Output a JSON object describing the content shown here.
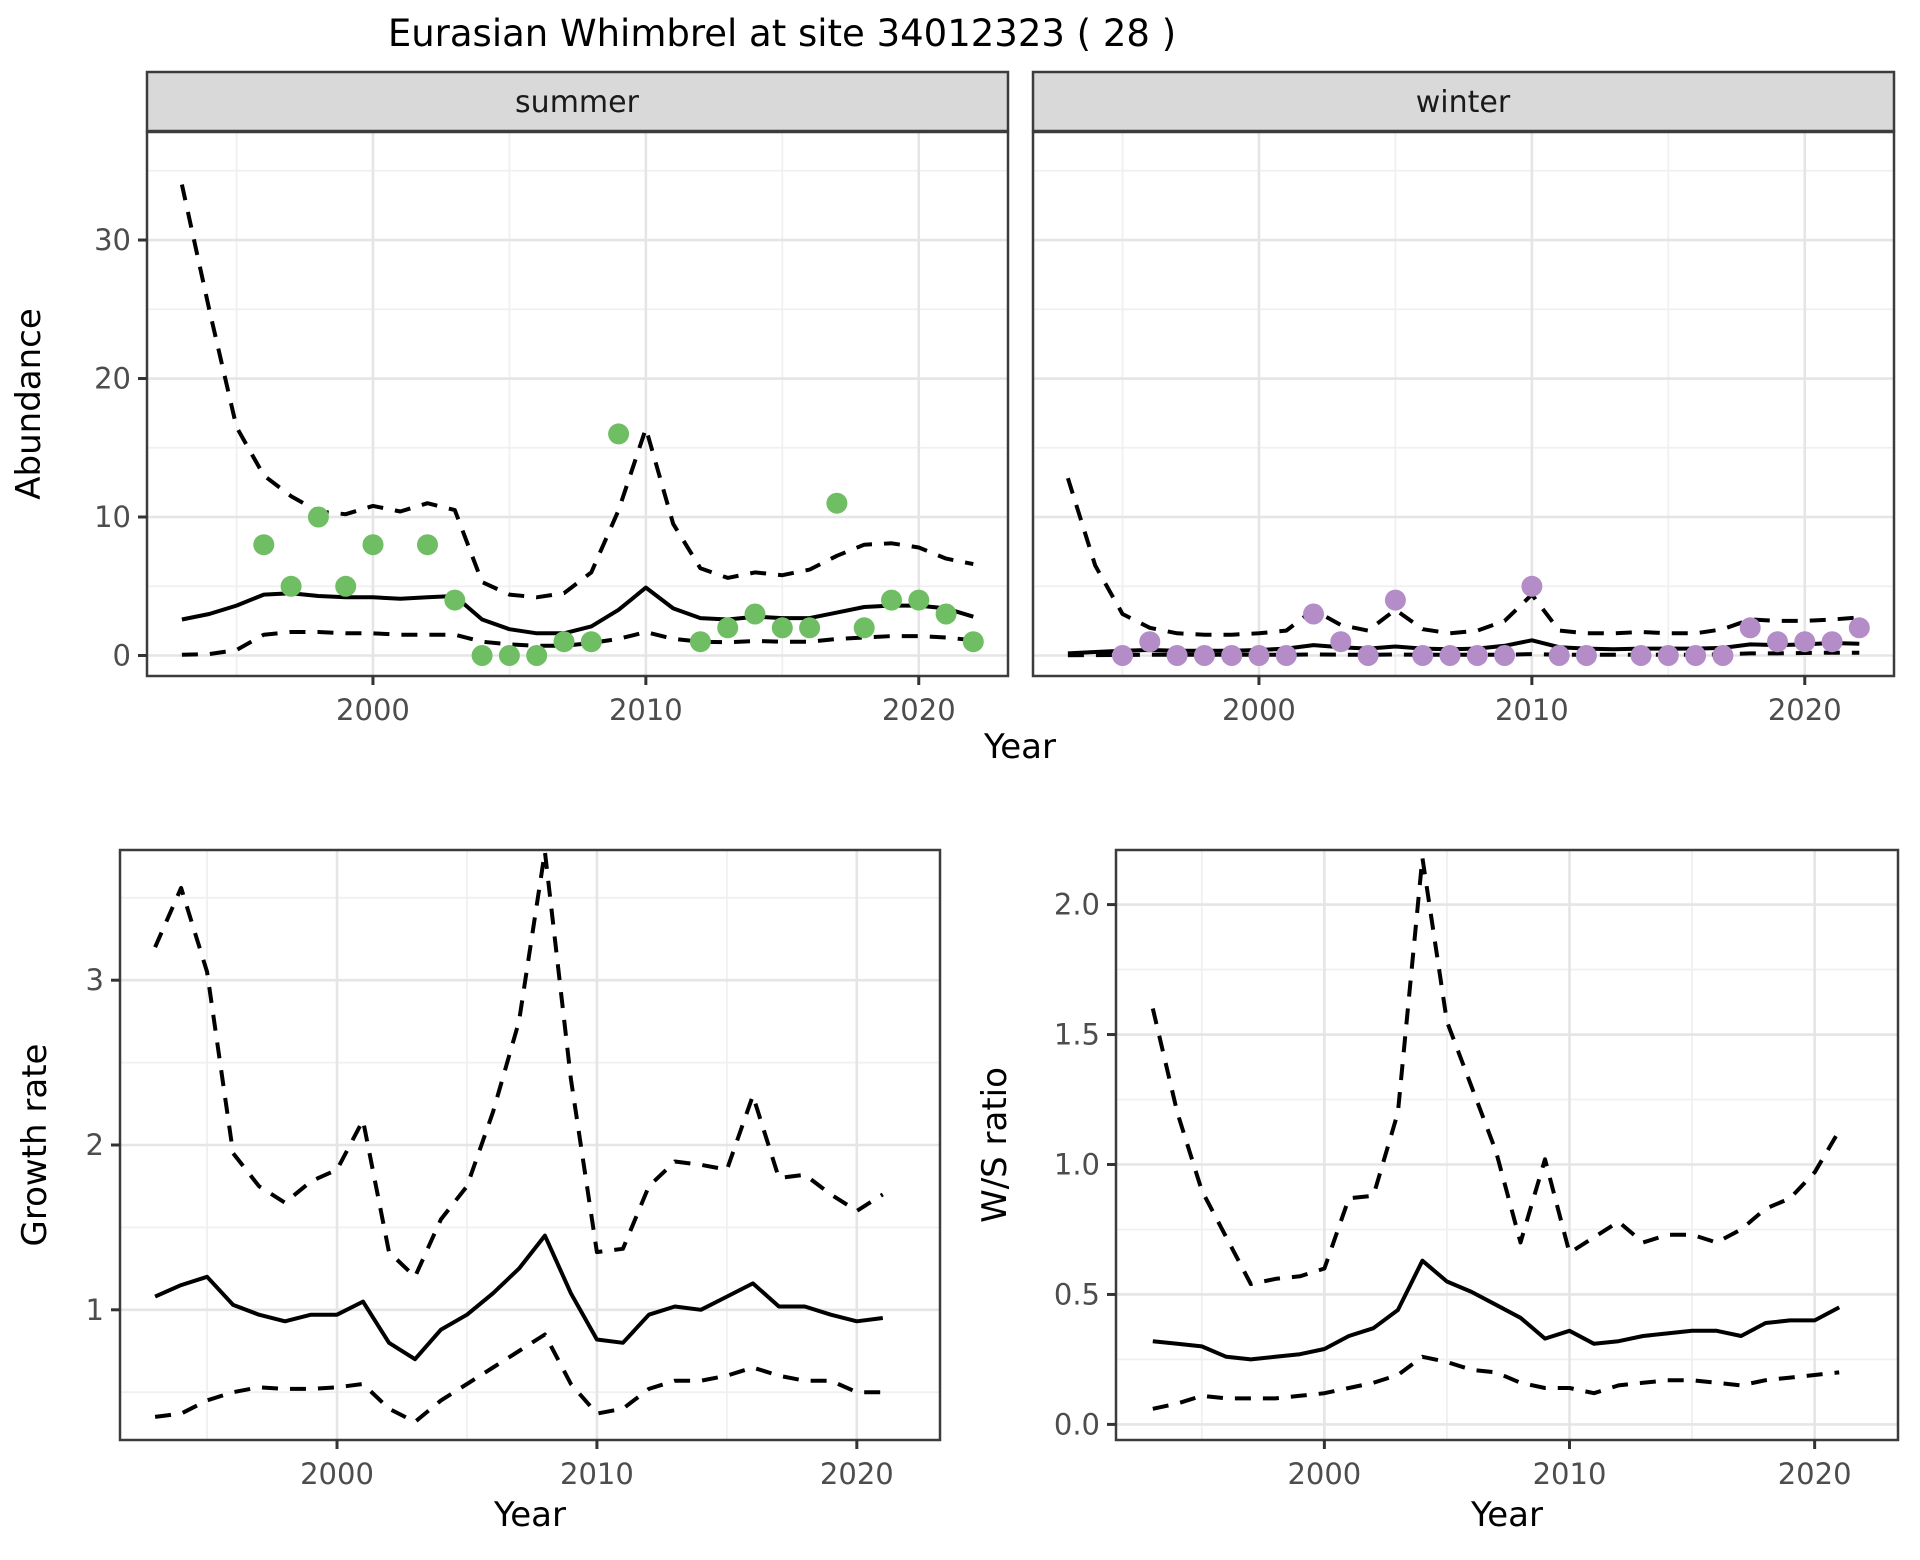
{
  "title": "Eurasian Whimbrel at site 34012323 ( 28 )",
  "facets": {
    "summer": "summer",
    "winter": "winter"
  },
  "axis_labels": {
    "abundance": "Abundance",
    "year": "Year",
    "growth_rate": "Growth rate",
    "ws_ratio": "W/S ratio"
  },
  "colors": {
    "summer_points": "#6FBE63",
    "winter_points": "#B48CC8",
    "line": "#000000",
    "strip_bg": "#D9D9D9",
    "panel_border": "#3C3C3C",
    "grid_major": "#E5E5E5",
    "grid_minor": "#F0F0F0",
    "tick_mark": "#333333",
    "tick_text": "#4D4D4D"
  },
  "chart_data": [
    {
      "id": "abundance-summer",
      "type": "line",
      "panel": "summer",
      "facet": "summer",
      "ylabel": "Abundance",
      "xlabel": "Year",
      "legend_position": "none",
      "grid": true,
      "xlim": [
        1991.72,
        2023.27
      ],
      "ylim": [
        -1.48,
        37.8
      ],
      "x_ticks": [
        2000,
        2010,
        2020
      ],
      "x_tick_labels": [
        "2000",
        "2010",
        "2020"
      ],
      "x_minor": [
        1995,
        2005,
        2015
      ],
      "y_ticks": [
        0,
        10,
        20,
        30
      ],
      "y_tick_labels": [
        "0",
        "10",
        "20",
        "30"
      ],
      "y_minor": [
        5,
        15,
        25,
        35
      ],
      "years": [
        1993,
        1994,
        1995,
        1996,
        1997,
        1998,
        1999,
        2000,
        2001,
        2002,
        2003,
        2004,
        2005,
        2006,
        2007,
        2008,
        2009,
        2010,
        2011,
        2012,
        2013,
        2014,
        2015,
        2016,
        2017,
        2018,
        2019,
        2020,
        2021,
        2022
      ],
      "fit": [
        2.6,
        3.0,
        3.6,
        4.4,
        4.5,
        4.3,
        4.2,
        4.2,
        4.1,
        4.2,
        4.3,
        2.6,
        1.9,
        1.6,
        1.6,
        2.1,
        3.3,
        4.9,
        3.4,
        2.7,
        2.6,
        2.8,
        2.7,
        2.7,
        3.1,
        3.5,
        3.6,
        3.6,
        3.4,
        2.8
      ],
      "upper": [
        34,
        25,
        16.5,
        13,
        11.5,
        10.4,
        10.2,
        10.8,
        10.4,
        11,
        10.5,
        5.3,
        4.4,
        4.2,
        4.5,
        6,
        10.5,
        16.4,
        9.5,
        6.3,
        5.6,
        6,
        5.8,
        6.2,
        7.2,
        8,
        8.1,
        7.8,
        7,
        6.6
      ],
      "lower": [
        0.05,
        0.1,
        0.4,
        1.5,
        1.7,
        1.7,
        1.6,
        1.6,
        1.5,
        1.5,
        1.5,
        1.0,
        0.8,
        0.7,
        0.7,
        0.9,
        1.2,
        1.7,
        1.2,
        1.0,
        0.95,
        1.05,
        1.0,
        1.0,
        1.2,
        1.3,
        1.4,
        1.4,
        1.3,
        1.1
      ],
      "obs_years": [
        1996,
        1997,
        1998,
        1999,
        2000,
        2002,
        2003,
        2004,
        2005,
        2006,
        2007,
        2008,
        2009,
        2012,
        2013,
        2014,
        2015,
        2016,
        2017,
        2018,
        2019,
        2020,
        2021,
        2022
      ],
      "obs_values": [
        8,
        5,
        10,
        5,
        8,
        8,
        4,
        0,
        0,
        0,
        1,
        1,
        16,
        1,
        2,
        3,
        2,
        2,
        11,
        2,
        4,
        4,
        3,
        1
      ],
      "point_color": "#6FBE63"
    },
    {
      "id": "abundance-winter",
      "type": "line",
      "panel": "winter",
      "facet": "winter",
      "ylabel": "Abundance",
      "xlabel": "Year",
      "legend_position": "none",
      "grid": true,
      "xlim": [
        1991.72,
        2023.27
      ],
      "ylim": [
        -1.48,
        37.8
      ],
      "x_ticks": [
        2000,
        2010,
        2020
      ],
      "x_tick_labels": [
        "2000",
        "2010",
        "2020"
      ],
      "x_minor": [
        1995,
        2005,
        2015
      ],
      "y_ticks": [
        0,
        10,
        20,
        30
      ],
      "y_tick_labels": null,
      "y_minor": [
        5,
        15,
        25,
        35
      ],
      "years": [
        1993,
        1994,
        1995,
        1996,
        1997,
        1998,
        1999,
        2000,
        2001,
        2002,
        2003,
        2004,
        2005,
        2006,
        2007,
        2008,
        2009,
        2010,
        2011,
        2012,
        2013,
        2014,
        2015,
        2016,
        2017,
        2018,
        2019,
        2020,
        2021,
        2022
      ],
      "fit": [
        0.15,
        0.25,
        0.35,
        0.4,
        0.35,
        0.35,
        0.35,
        0.4,
        0.5,
        0.75,
        0.6,
        0.5,
        0.65,
        0.5,
        0.45,
        0.5,
        0.7,
        1.1,
        0.6,
        0.5,
        0.45,
        0.5,
        0.5,
        0.5,
        0.55,
        0.8,
        0.75,
        0.8,
        0.9,
        0.85
      ],
      "upper": [
        12.8,
        6.5,
        3.0,
        2.0,
        1.6,
        1.5,
        1.5,
        1.6,
        1.8,
        3.3,
        2.2,
        1.8,
        3.3,
        1.9,
        1.6,
        1.8,
        2.5,
        4.4,
        1.8,
        1.6,
        1.6,
        1.7,
        1.6,
        1.6,
        1.9,
        2.6,
        2.5,
        2.5,
        2.6,
        2.75
      ],
      "lower": [
        0.02,
        0.03,
        0.04,
        0.05,
        0.05,
        0.05,
        0.05,
        0.05,
        0.05,
        0.08,
        0.06,
        0.05,
        0.07,
        0.05,
        0.05,
        0.05,
        0.06,
        0.1,
        0.06,
        0.05,
        0.05,
        0.05,
        0.05,
        0.05,
        0.08,
        0.15,
        0.15,
        0.18,
        0.2,
        0.2
      ],
      "obs_years": [
        1995,
        1996,
        1997,
        1998,
        1999,
        2000,
        2001,
        2002,
        2003,
        2004,
        2005,
        2006,
        2007,
        2008,
        2009,
        2010,
        2011,
        2012,
        2014,
        2015,
        2016,
        2017,
        2018,
        2019,
        2020,
        2021,
        2022
      ],
      "obs_values": [
        0,
        1,
        0,
        0,
        0,
        0,
        0,
        3,
        1,
        0,
        4,
        0,
        0,
        0,
        0,
        5,
        0,
        0,
        0,
        0,
        0,
        0,
        2,
        1,
        1,
        1,
        2
      ],
      "point_color": "#B48CC8"
    },
    {
      "id": "growth-rate",
      "type": "line",
      "panel": "growth",
      "facet": null,
      "ylabel": "Growth rate",
      "xlabel": "Year",
      "legend_position": "none",
      "grid": true,
      "xlim": [
        1991.65,
        2023.2
      ],
      "ylim": [
        0.21,
        3.79
      ],
      "x_ticks": [
        2000,
        2010,
        2020
      ],
      "x_tick_labels": [
        "2000",
        "2010",
        "2020"
      ],
      "x_minor": [
        1995,
        2005,
        2015
      ],
      "y_ticks": [
        1,
        2,
        3
      ],
      "y_tick_labels": [
        "1",
        "2",
        "3"
      ],
      "y_minor": [
        0.5,
        1.5,
        2.5,
        3.5
      ],
      "years": [
        1993,
        1994,
        1995,
        1996,
        1997,
        1998,
        1999,
        2000,
        2001,
        2002,
        2003,
        2004,
        2005,
        2006,
        2007,
        2008,
        2009,
        2010,
        2011,
        2012,
        2013,
        2014,
        2015,
        2016,
        2017,
        2018,
        2019,
        2020,
        2021
      ],
      "fit": [
        1.08,
        1.15,
        1.2,
        1.03,
        0.97,
        0.93,
        0.97,
        0.97,
        1.05,
        0.8,
        0.7,
        0.88,
        0.97,
        1.1,
        1.25,
        1.45,
        1.1,
        0.82,
        0.8,
        0.97,
        1.02,
        1.0,
        1.08,
        1.16,
        1.02,
        1.02,
        0.97,
        0.93,
        0.95
      ],
      "upper": [
        3.2,
        3.56,
        3.05,
        1.95,
        1.75,
        1.65,
        1.78,
        1.85,
        2.15,
        1.35,
        1.2,
        1.55,
        1.75,
        2.2,
        2.75,
        3.78,
        2.4,
        1.35,
        1.37,
        1.75,
        1.9,
        1.88,
        1.85,
        2.3,
        1.8,
        1.82,
        1.7,
        1.6,
        1.7
      ],
      "lower": [
        0.35,
        0.37,
        0.45,
        0.5,
        0.53,
        0.52,
        0.52,
        0.53,
        0.55,
        0.4,
        0.32,
        0.45,
        0.55,
        0.65,
        0.75,
        0.85,
        0.55,
        0.37,
        0.4,
        0.52,
        0.57,
        0.57,
        0.6,
        0.65,
        0.6,
        0.57,
        0.57,
        0.5,
        0.5
      ],
      "obs_years": [],
      "obs_values": [],
      "point_color": null
    },
    {
      "id": "ws-ratio",
      "type": "line",
      "panel": "ws",
      "facet": null,
      "ylabel": "W/S ratio",
      "xlabel": "Year",
      "legend_position": "none",
      "grid": true,
      "xlim": [
        1991.5,
        2023.4
      ],
      "ylim": [
        -0.06,
        2.21
      ],
      "x_ticks": [
        2000,
        2010,
        2020
      ],
      "x_tick_labels": [
        "2000",
        "2010",
        "2020"
      ],
      "x_minor": [
        1995,
        2005,
        2015
      ],
      "y_ticks": [
        0.0,
        0.5,
        1.0,
        1.5,
        2.0
      ],
      "y_tick_labels": [
        "0.0",
        "0.5",
        "1.0",
        "1.5",
        "2.0"
      ],
      "y_minor": [
        0.25,
        0.75,
        1.25,
        1.75
      ],
      "years": [
        1993,
        1994,
        1995,
        1996,
        1997,
        1998,
        1999,
        2000,
        2001,
        2002,
        2003,
        2004,
        2005,
        2006,
        2007,
        2008,
        2009,
        2010,
        2011,
        2012,
        2013,
        2014,
        2015,
        2016,
        2017,
        2018,
        2019,
        2020,
        2021
      ],
      "fit": [
        0.32,
        0.31,
        0.3,
        0.26,
        0.25,
        0.26,
        0.27,
        0.29,
        0.34,
        0.37,
        0.44,
        0.63,
        0.55,
        0.51,
        0.46,
        0.41,
        0.33,
        0.36,
        0.31,
        0.32,
        0.34,
        0.35,
        0.36,
        0.36,
        0.34,
        0.39,
        0.4,
        0.4,
        0.45
      ],
      "upper": [
        1.6,
        1.2,
        0.9,
        0.72,
        0.54,
        0.56,
        0.57,
        0.6,
        0.87,
        0.88,
        1.2,
        2.18,
        1.55,
        1.3,
        1.05,
        0.7,
        1.02,
        0.66,
        0.72,
        0.78,
        0.7,
        0.73,
        0.73,
        0.7,
        0.75,
        0.83,
        0.87,
        0.97,
        1.13
      ],
      "lower": [
        0.06,
        0.08,
        0.11,
        0.1,
        0.1,
        0.1,
        0.11,
        0.12,
        0.14,
        0.16,
        0.19,
        0.26,
        0.24,
        0.21,
        0.2,
        0.16,
        0.14,
        0.14,
        0.12,
        0.15,
        0.16,
        0.17,
        0.17,
        0.16,
        0.15,
        0.17,
        0.18,
        0.19,
        0.2
      ],
      "obs_years": [],
      "obs_values": [],
      "point_color": null
    }
  ]
}
